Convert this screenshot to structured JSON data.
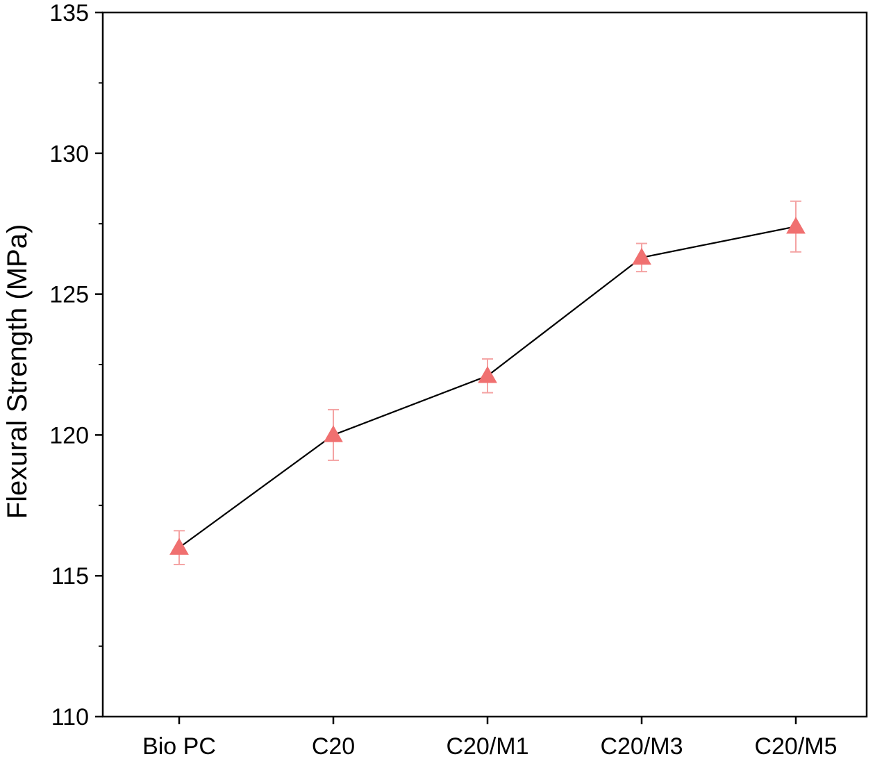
{
  "chart_data": {
    "type": "line",
    "title": "",
    "xlabel": "",
    "ylabel": "Flexural Strength (MPa)",
    "categories": [
      "Bio PC",
      "C20",
      "C20/M1",
      "C20/M3",
      "C20/M5"
    ],
    "series": [
      {
        "values": [
          116.0,
          120.0,
          122.1,
          126.3,
          127.4
        ],
        "errors": [
          0.6,
          0.9,
          0.6,
          0.5,
          0.9
        ],
        "marker": "triangle",
        "marker_color": "#F07070",
        "line_color": "#000000"
      }
    ],
    "ylim": [
      110,
      135
    ],
    "yticks": [
      110,
      115,
      120,
      125,
      130,
      135
    ],
    "ytick_labels": [
      "110",
      "115",
      "120",
      "125",
      "130",
      "135"
    ],
    "grid": false,
    "legend": "none"
  }
}
